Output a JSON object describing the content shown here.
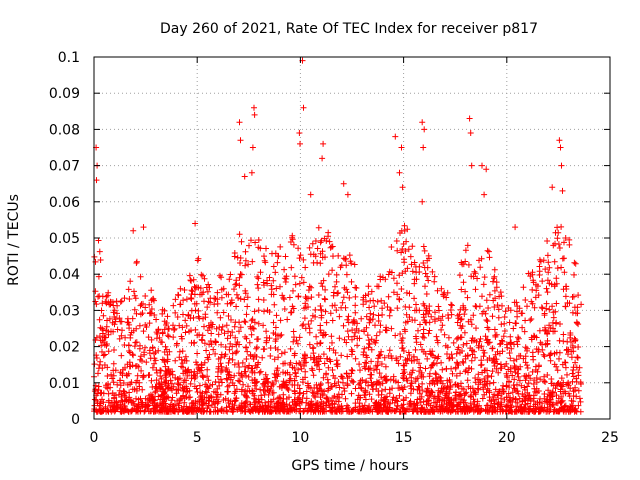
{
  "chart_data": {
    "type": "scatter",
    "title": "Day 260 of 2021, Rate Of TEC Index for receiver p817",
    "xlabel": "GPS time / hours",
    "ylabel": "ROTI / TECUs",
    "xlim": [
      0,
      25
    ],
    "ylim": [
      0,
      0.1
    ],
    "x_ticks": [
      0,
      5,
      10,
      15,
      20,
      25
    ],
    "x_tick_labels": [
      "0",
      "5",
      "10",
      "15",
      "20",
      "25"
    ],
    "y_ticks": [
      0,
      0.01,
      0.02,
      0.03,
      0.04,
      0.05,
      0.06,
      0.07,
      0.08,
      0.09,
      0.1
    ],
    "y_tick_labels": [
      "0",
      "0.01",
      "0.02",
      "0.03",
      "0.04",
      "0.05",
      "0.06",
      "0.07",
      "0.08",
      "0.09",
      "0.1"
    ],
    "grid": true,
    "marker": "+",
    "color": "#ff0000",
    "data_x_range": [
      0,
      23.6
    ],
    "envelope": {
      "x": [
        0,
        0.2,
        0.5,
        1.0,
        1.5,
        2.0,
        2.5,
        3.0,
        3.5,
        4.0,
        4.5,
        5.0,
        5.5,
        6.0,
        6.5,
        7.0,
        7.5,
        8.0,
        8.5,
        9.0,
        9.5,
        10.0,
        10.5,
        11.0,
        11.5,
        12.0,
        12.5,
        13.0,
        13.5,
        14.0,
        14.5,
        15.0,
        15.5,
        16.0,
        16.5,
        17.0,
        17.5,
        18.0,
        18.5,
        19.0,
        19.5,
        20.0,
        20.5,
        21.0,
        21.5,
        22.0,
        22.5,
        23.0,
        23.6
      ],
      "y": [
        0.045,
        0.05,
        0.04,
        0.032,
        0.035,
        0.045,
        0.04,
        0.032,
        0.03,
        0.035,
        0.038,
        0.045,
        0.04,
        0.04,
        0.038,
        0.055,
        0.05,
        0.052,
        0.046,
        0.048,
        0.05,
        0.055,
        0.048,
        0.055,
        0.05,
        0.048,
        0.045,
        0.04,
        0.035,
        0.042,
        0.05,
        0.055,
        0.048,
        0.05,
        0.04,
        0.035,
        0.038,
        0.05,
        0.045,
        0.05,
        0.04,
        0.03,
        0.035,
        0.04,
        0.045,
        0.05,
        0.055,
        0.05,
        0.04
      ]
    },
    "peaks": [
      {
        "x": 0.1,
        "y": 0.075
      },
      {
        "x": 0.12,
        "y": 0.066
      },
      {
        "x": 0.15,
        "y": 0.07
      },
      {
        "x": 1.9,
        "y": 0.052
      },
      {
        "x": 2.4,
        "y": 0.053
      },
      {
        "x": 4.9,
        "y": 0.054
      },
      {
        "x": 7.05,
        "y": 0.082
      },
      {
        "x": 7.1,
        "y": 0.077
      },
      {
        "x": 7.3,
        "y": 0.067
      },
      {
        "x": 7.75,
        "y": 0.086
      },
      {
        "x": 7.78,
        "y": 0.084
      },
      {
        "x": 7.7,
        "y": 0.075
      },
      {
        "x": 7.65,
        "y": 0.068
      },
      {
        "x": 9.95,
        "y": 0.079
      },
      {
        "x": 9.98,
        "y": 0.076
      },
      {
        "x": 10.1,
        "y": 0.099
      },
      {
        "x": 10.15,
        "y": 0.086
      },
      {
        "x": 10.5,
        "y": 0.062
      },
      {
        "x": 11.1,
        "y": 0.076
      },
      {
        "x": 11.05,
        "y": 0.072
      },
      {
        "x": 12.1,
        "y": 0.065
      },
      {
        "x": 12.3,
        "y": 0.062
      },
      {
        "x": 14.6,
        "y": 0.078
      },
      {
        "x": 14.9,
        "y": 0.075
      },
      {
        "x": 14.8,
        "y": 0.068
      },
      {
        "x": 14.95,
        "y": 0.064
      },
      {
        "x": 15.9,
        "y": 0.082
      },
      {
        "x": 16.0,
        "y": 0.08
      },
      {
        "x": 15.95,
        "y": 0.075
      },
      {
        "x": 15.9,
        "y": 0.06
      },
      {
        "x": 18.2,
        "y": 0.083
      },
      {
        "x": 18.25,
        "y": 0.079
      },
      {
        "x": 18.3,
        "y": 0.07
      },
      {
        "x": 18.8,
        "y": 0.07
      },
      {
        "x": 19.0,
        "y": 0.069
      },
      {
        "x": 18.9,
        "y": 0.062
      },
      {
        "x": 22.55,
        "y": 0.077
      },
      {
        "x": 22.6,
        "y": 0.075
      },
      {
        "x": 22.65,
        "y": 0.07
      },
      {
        "x": 22.2,
        "y": 0.064
      },
      {
        "x": 22.7,
        "y": 0.063
      },
      {
        "x": 20.4,
        "y": 0.053
      }
    ]
  }
}
